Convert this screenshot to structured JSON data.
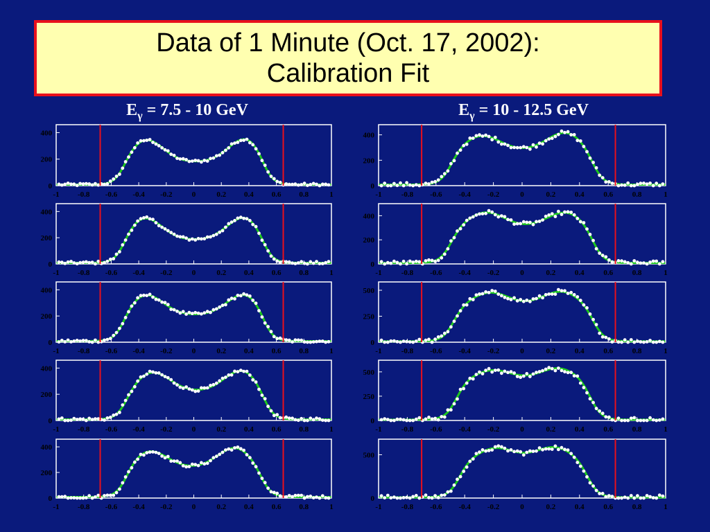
{
  "title": {
    "line1": "Data of 1 Minute (Oct. 17, 2002):",
    "line2": "Calibration Fit"
  },
  "columns": [
    {
      "label_main": "E",
      "label_sub": "γ",
      "label_rest": " = 7.5 - 10 GeV"
    },
    {
      "label_main": "E",
      "label_sub": "γ",
      "label_rest": " = 10 - 12.5 GeV"
    }
  ],
  "colors": {
    "background": "#0a1a7c",
    "title_fill": "#ffffb0",
    "title_border": "#e8101c",
    "plot_frame": "#ffffff",
    "fit_line": "#1ec81e",
    "data_points": "#ffffff",
    "cut_line": "#e8101c",
    "text": "#000000"
  },
  "chart_data": [
    {
      "type": "scatter",
      "column": 0,
      "row": 0,
      "xlim": [
        -1,
        1
      ],
      "ylim": [
        0,
        460
      ],
      "x_ticks": [
        "-1",
        "-0.8",
        "-0.6",
        "-0.4",
        "-0.2",
        "0",
        "0.2",
        "0.4",
        "0.6",
        "0.8",
        "1"
      ],
      "y_ticks": [
        0,
        200,
        400
      ],
      "cut_lines": [
        -0.68,
        0.65
      ],
      "fit": {
        "peak_left": 340,
        "peak_right": 350,
        "valley": 170,
        "peak_left_x": -0.35,
        "peak_right_x": 0.38,
        "edge_left": -0.52,
        "edge_right": 0.52
      }
    },
    {
      "type": "scatter",
      "column": 0,
      "row": 1,
      "xlim": [
        -1,
        1
      ],
      "ylim": [
        0,
        460
      ],
      "x_ticks": [
        "-1",
        "-0.8",
        "-0.6",
        "-0.4",
        "-0.2",
        "0",
        "0.2",
        "0.4",
        "0.6",
        "0.8",
        "1"
      ],
      "y_ticks": [
        0,
        200,
        400
      ],
      "cut_lines": [
        -0.68,
        0.65
      ],
      "fit": {
        "peak_left": 345,
        "peak_right": 350,
        "valley": 175,
        "peak_left_x": -0.36,
        "peak_right_x": 0.37,
        "edge_left": -0.52,
        "edge_right": 0.52
      }
    },
    {
      "type": "scatter",
      "column": 0,
      "row": 2,
      "xlim": [
        -1,
        1
      ],
      "ylim": [
        0,
        460
      ],
      "x_ticks": [
        "-1",
        "-0.8",
        "-0.6",
        "-0.4",
        "-0.2",
        "0",
        "0.2",
        "0.4",
        "0.6",
        "0.8",
        "1"
      ],
      "y_ticks": [
        0,
        200,
        400
      ],
      "cut_lines": [
        -0.68,
        0.65
      ],
      "fit": {
        "peak_left": 355,
        "peak_right": 360,
        "valley": 200,
        "peak_left_x": -0.35,
        "peak_right_x": 0.37,
        "edge_left": -0.52,
        "edge_right": 0.52
      }
    },
    {
      "type": "scatter",
      "column": 0,
      "row": 3,
      "xlim": [
        -1,
        1
      ],
      "ylim": [
        0,
        460
      ],
      "x_ticks": [
        "-1",
        "-0.8",
        "-0.6",
        "-0.4",
        "-0.2",
        "0",
        "0.2",
        "0.4",
        "0.6",
        "0.8",
        "1"
      ],
      "y_ticks": [
        0,
        200,
        400
      ],
      "cut_lines": [
        -0.68,
        0.65
      ],
      "fit": {
        "peak_left": 360,
        "peak_right": 375,
        "valley": 215,
        "peak_left_x": -0.3,
        "peak_right_x": 0.35,
        "edge_left": -0.5,
        "edge_right": 0.52
      }
    },
    {
      "type": "scatter",
      "column": 0,
      "row": 4,
      "xlim": [
        -1,
        1
      ],
      "ylim": [
        0,
        460
      ],
      "x_ticks": [
        "-1",
        "-0.8",
        "-0.6",
        "-0.4",
        "-0.2",
        "0",
        "0.2",
        "0.4",
        "0.6",
        "0.8",
        "1"
      ],
      "y_ticks": [
        0,
        200,
        400
      ],
      "cut_lines": [
        -0.68,
        0.65
      ],
      "fit": {
        "peak_left": 360,
        "peak_right": 385,
        "valley": 230,
        "peak_left_x": -0.32,
        "peak_right_x": 0.3,
        "edge_left": -0.5,
        "edge_right": 0.5
      }
    },
    {
      "type": "scatter",
      "column": 1,
      "row": 0,
      "xlim": [
        -1,
        1
      ],
      "ylim": [
        0,
        480
      ],
      "x_ticks": [
        "-1",
        "-0.8",
        "-0.6",
        "-0.4",
        "-0.2",
        "0",
        "0.2",
        "0.4",
        "0.6",
        "0.8",
        "1"
      ],
      "y_ticks": [
        0,
        200,
        400
      ],
      "cut_lines": [
        -0.7,
        0.65
      ],
      "fit": {
        "peak_left": 385,
        "peak_right": 410,
        "valley": 270,
        "peak_left_x": -0.28,
        "peak_right_x": 0.3,
        "edge_left": -0.5,
        "edge_right": 0.5
      }
    },
    {
      "type": "scatter",
      "column": 1,
      "row": 1,
      "xlim": [
        -1,
        1
      ],
      "ylim": [
        0,
        500
      ],
      "x_ticks": [
        "-1",
        "-0.8",
        "-0.6",
        "-0.4",
        "-0.2",
        "0",
        "0.2",
        "0.4",
        "0.6",
        "0.8",
        "1"
      ],
      "y_ticks": [
        0,
        200,
        400
      ],
      "cut_lines": [
        -0.7,
        0.65
      ],
      "fit": {
        "peak_left": 420,
        "peak_right": 420,
        "valley": 300,
        "peak_left_x": -0.25,
        "peak_right_x": 0.3,
        "edge_left": -0.5,
        "edge_right": 0.5
      }
    },
    {
      "type": "scatter",
      "column": 1,
      "row": 2,
      "xlim": [
        -1,
        1
      ],
      "ylim": [
        0,
        580
      ],
      "x_ticks": [
        "-1",
        "-0.8",
        "-0.6",
        "-0.4",
        "-0.2",
        "0",
        "0.2",
        "0.4",
        "0.6",
        "0.8",
        "1"
      ],
      "y_ticks": [
        0,
        250,
        500
      ],
      "cut_lines": [
        -0.7,
        0.65
      ],
      "fit": {
        "peak_left": 470,
        "peak_right": 480,
        "valley": 350,
        "peak_left_x": -0.22,
        "peak_right_x": 0.27,
        "edge_left": -0.48,
        "edge_right": 0.5
      }
    },
    {
      "type": "scatter",
      "column": 1,
      "row": 3,
      "xlim": [
        -1,
        1
      ],
      "ylim": [
        0,
        620
      ],
      "x_ticks": [
        "-1",
        "-0.8",
        "-0.6",
        "-0.4",
        "-0.2",
        "0",
        "0.2",
        "0.4",
        "0.6",
        "0.8",
        "1"
      ],
      "y_ticks": [
        0,
        250,
        500
      ],
      "cut_lines": [
        -0.7,
        0.65
      ],
      "fit": {
        "peak_left": 510,
        "peak_right": 530,
        "valley": 410,
        "peak_left_x": -0.2,
        "peak_right_x": 0.25,
        "edge_left": -0.46,
        "edge_right": 0.48
      }
    },
    {
      "type": "scatter",
      "column": 1,
      "row": 4,
      "xlim": [
        -1,
        1
      ],
      "ylim": [
        0,
        680
      ],
      "x_ticks": [
        "-1",
        "-0.8",
        "-0.6",
        "-0.4",
        "-0.2",
        "0",
        "0.2",
        "0.4",
        "0.6",
        "0.8",
        "1"
      ],
      "y_ticks": [
        0,
        500
      ],
      "cut_lines": [
        -0.7,
        0.65
      ],
      "fit": {
        "peak_left": 570,
        "peak_right": 580,
        "valley": 430,
        "peak_left_x": -0.18,
        "peak_right_x": 0.22,
        "edge_left": -0.44,
        "edge_right": 0.46
      }
    }
  ]
}
